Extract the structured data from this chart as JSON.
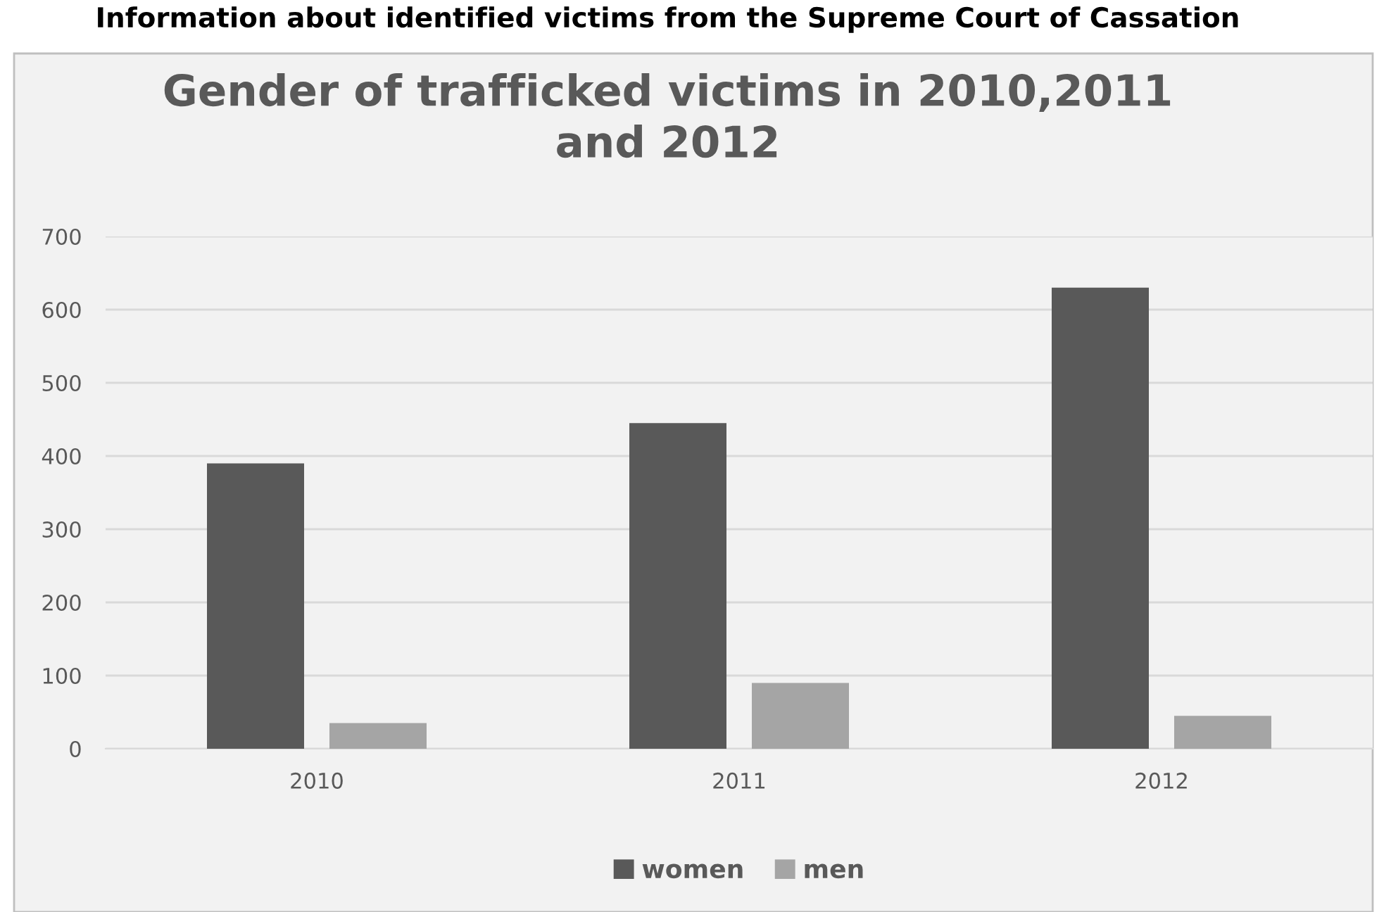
{
  "chart_data": {
    "type": "bar",
    "title": "Gender of trafficked victims in 2010,2011\nand 2012",
    "annotations": [
      "Information about identified victims from the Supreme Court of Cassation"
    ],
    "categories": [
      "2010",
      "2011",
      "2012"
    ],
    "series": [
      {
        "name": "women",
        "color": "#595959",
        "values": [
          390,
          445,
          630
        ]
      },
      {
        "name": "men",
        "color": "#a5a5a5",
        "values": [
          35,
          90,
          45
        ]
      }
    ],
    "ylim": [
      0,
      700
    ],
    "yticks": [
      0,
      100,
      200,
      300,
      400,
      500,
      600,
      700
    ],
    "grid": "y",
    "legend": "bottom"
  }
}
